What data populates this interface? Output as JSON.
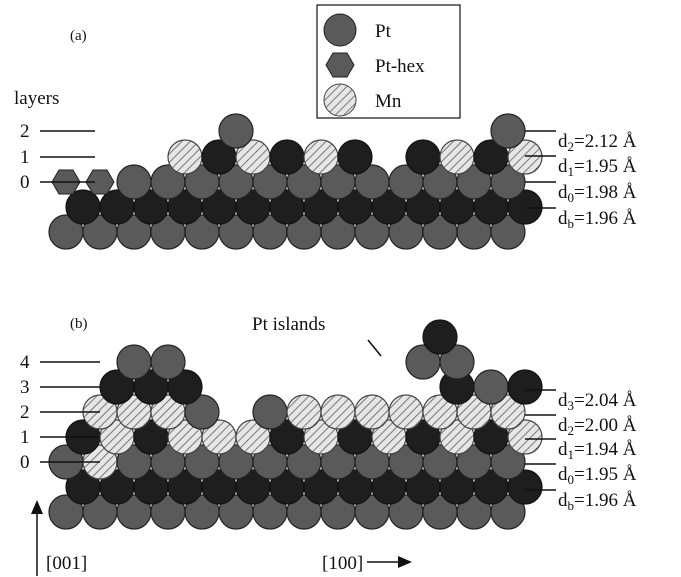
{
  "panel_a": {
    "label": "(a)",
    "layers_title": "layers",
    "layers": [
      "2",
      "1",
      "0"
    ],
    "spacings": [
      {
        "symbol": "d",
        "subscript": "2",
        "text": "=2.12 Å"
      },
      {
        "symbol": "d",
        "subscript": "1",
        "text": "=1.95 Å"
      },
      {
        "symbol": "d",
        "subscript": "0",
        "text": "=1.98 Å"
      },
      {
        "symbol": "d",
        "subscript": "b",
        "text": "=1.96 Å"
      }
    ]
  },
  "legend": [
    "Pt",
    "Pt-hex",
    "Mn"
  ],
  "panel_b": {
    "label": "(b)",
    "annotation": "Pt islands",
    "layers": [
      "4",
      "3",
      "2",
      "1",
      "0"
    ],
    "spacings": [
      {
        "symbol": "d",
        "subscript": "3",
        "text": "=2.04 Å"
      },
      {
        "symbol": "d",
        "subscript": "2",
        "text": "=2.00 Å"
      },
      {
        "symbol": "d",
        "subscript": "1",
        "text": "=1.94 Å"
      },
      {
        "symbol": "d",
        "subscript": "0",
        "text": "=1.95 Å"
      },
      {
        "symbol": "d",
        "subscript": "b",
        "text": "=1.96 Å"
      }
    ]
  },
  "axes": {
    "vertical": "[001]",
    "horizontal": "[100]"
  }
}
